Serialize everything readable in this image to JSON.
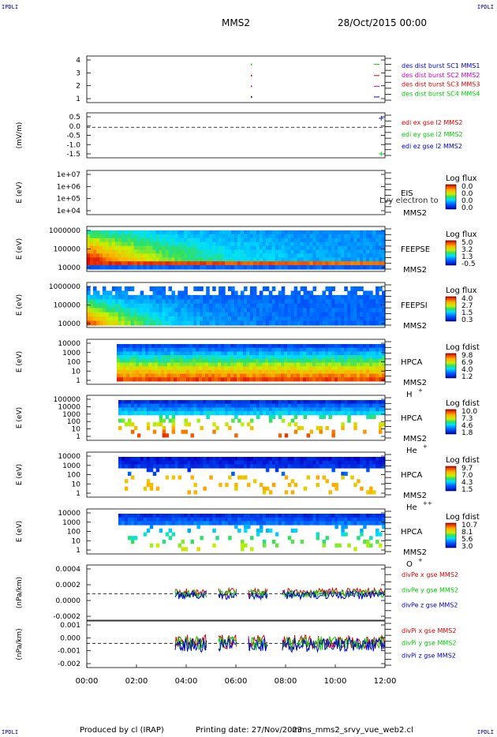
{
  "header": {
    "corner_tl": "IPDLI",
    "corner_tr": "IPDLI",
    "corner_bl": "IPDLI",
    "corner_br": "IPDLI",
    "mission": "MMS2",
    "date": "28/Oct/2015 00:00"
  },
  "footer": {
    "produced": "Produced by cl (IRAP)",
    "printing": "Printing date: 27/Nov/2023",
    "script": "mms_mms2_srvy_vue_web2.cl"
  },
  "colors": {
    "mms1": "#0000cc",
    "mms2": "#cc00cc",
    "mms3": "#dd0000",
    "mms4": "#00cc00",
    "x": "#dd0000",
    "y": "#00cc00",
    "z": "#0000cc"
  },
  "chart_data": [
    {
      "type": "scatter",
      "ylim": [
        0.5,
        4.5
      ],
      "yticks": [
        "4",
        "3",
        "2",
        "1"
      ],
      "series": [
        {
          "name": "des dist burst SC1 MMS1",
          "color": "#0000cc"
        },
        {
          "name": "des dist burst SC2 MMS2",
          "color": "#cc00cc"
        },
        {
          "name": "des dist burst SC3 MMS3",
          "color": "#dd0000"
        },
        {
          "name": "des dist burst SC4 MMS4",
          "color": "#00cc00"
        }
      ]
    },
    {
      "type": "line",
      "ylabel": "(mV/m)",
      "ylim": [
        -1.7,
        0.7
      ],
      "yticks": [
        "0.5",
        "0.0",
        "-0.5",
        "-1.0",
        "-1.5"
      ],
      "series": [
        {
          "name": "edi ex gse l2 MMS2",
          "color": "#dd0000"
        },
        {
          "name": "edi ey gse l2 MMS2",
          "color": "#00cc00"
        },
        {
          "name": "edi ez gse l2 MMS2",
          "color": "#0000cc"
        }
      ]
    },
    {
      "type": "heatmap",
      "ylabel": "E (eV)",
      "yticks": [
        "1e+07",
        "1e+06",
        "1e+05",
        "1e+04"
      ],
      "labels": [
        "EIS",
        "MMS2"
      ],
      "overlay_text": "Lvy electron to",
      "colorbar_title": "Log flux",
      "colorbar_ticks": [
        "0.0",
        "0.0",
        "0.0",
        "0.0"
      ]
    },
    {
      "type": "heatmap",
      "ylabel": "E (eV)",
      "yticks": [
        "1000000",
        "100000",
        "10000"
      ],
      "labels": [
        "FEEPSE",
        "MMS2"
      ],
      "colorbar_title": "Log flux",
      "colorbar_ticks": [
        "5.0",
        "3.2",
        "1.3",
        "-0.5"
      ]
    },
    {
      "type": "heatmap",
      "ylabel": "E (eV)",
      "yticks": [
        "1000000",
        "100000",
        "10000"
      ],
      "labels": [
        "FEEPSI",
        "MMS2"
      ],
      "colorbar_title": "Log flux",
      "colorbar_ticks": [
        "4.0",
        "2.7",
        "1.5",
        "0.3"
      ]
    },
    {
      "type": "heatmap",
      "ylabel": "E (eV)",
      "yticks": [
        "10000",
        "1000",
        "100",
        "10",
        "1"
      ],
      "labels": [
        "HPCA",
        "MMS2"
      ],
      "species": "H",
      "species_sup": "+",
      "colorbar_title": "Log fdist",
      "colorbar_ticks": [
        "9.8",
        "6.9",
        "4.0",
        "1.2"
      ]
    },
    {
      "type": "heatmap",
      "ylabel": "E (eV)",
      "yticks": [
        "100000",
        "10000",
        "1000",
        "100",
        "10",
        "1"
      ],
      "labels": [
        "HPCA",
        "MMS2"
      ],
      "species": "He",
      "species_sup": "+",
      "colorbar_title": "Log fdist",
      "colorbar_ticks": [
        "10.0",
        "7.3",
        "4.6",
        "1.8"
      ]
    },
    {
      "type": "heatmap",
      "ylabel": "E (eV)",
      "yticks": [
        "10000",
        "1000",
        "100",
        "10",
        "1"
      ],
      "labels": [
        "HPCA",
        "MMS2"
      ],
      "species": "He",
      "species_sup": "++",
      "colorbar_title": "Log fdist",
      "colorbar_ticks": [
        "9.7",
        "7.0",
        "4.3",
        "1.5"
      ]
    },
    {
      "type": "heatmap",
      "ylabel": "E (eV)",
      "yticks": [
        "10000",
        "1000",
        "100",
        "10",
        "1"
      ],
      "labels": [
        "HPCA",
        "MMS2"
      ],
      "species": "O",
      "species_sup": "+",
      "colorbar_title": "Log fdist",
      "colorbar_ticks": [
        "10.7",
        "8.1",
        "5.6",
        "3.0"
      ]
    },
    {
      "type": "line",
      "ylabel": "(nPa/km)",
      "ylim": [
        -0.0003,
        0.0004
      ],
      "yticks": [
        "0.0004",
        "0.0002",
        "0.0000",
        "-0.0002"
      ],
      "series": [
        {
          "name": "divPe x gse MMS2",
          "color": "#dd0000"
        },
        {
          "name": "divPe y gse MMS2",
          "color": "#00cc00"
        },
        {
          "name": "divPe z gse MMS2",
          "color": "#0000cc"
        }
      ]
    },
    {
      "type": "line",
      "ylabel": "(nPa/km)",
      "ylim": [
        -0.0022,
        0.0014
      ],
      "yticks": [
        "0.001",
        "0.000",
        "-0.001",
        "-0.002"
      ],
      "series": [
        {
          "name": "divPi x gse MMS2",
          "color": "#dd0000"
        },
        {
          "name": "divPi y gse MMS2",
          "color": "#00cc00"
        },
        {
          "name": "divPi z gse MMS2",
          "color": "#0000cc"
        }
      ]
    }
  ],
  "time_axis": {
    "ticks": [
      "00:00",
      "02:00",
      "04:00",
      "06:00",
      "08:00",
      "10:00",
      "12:00"
    ]
  }
}
